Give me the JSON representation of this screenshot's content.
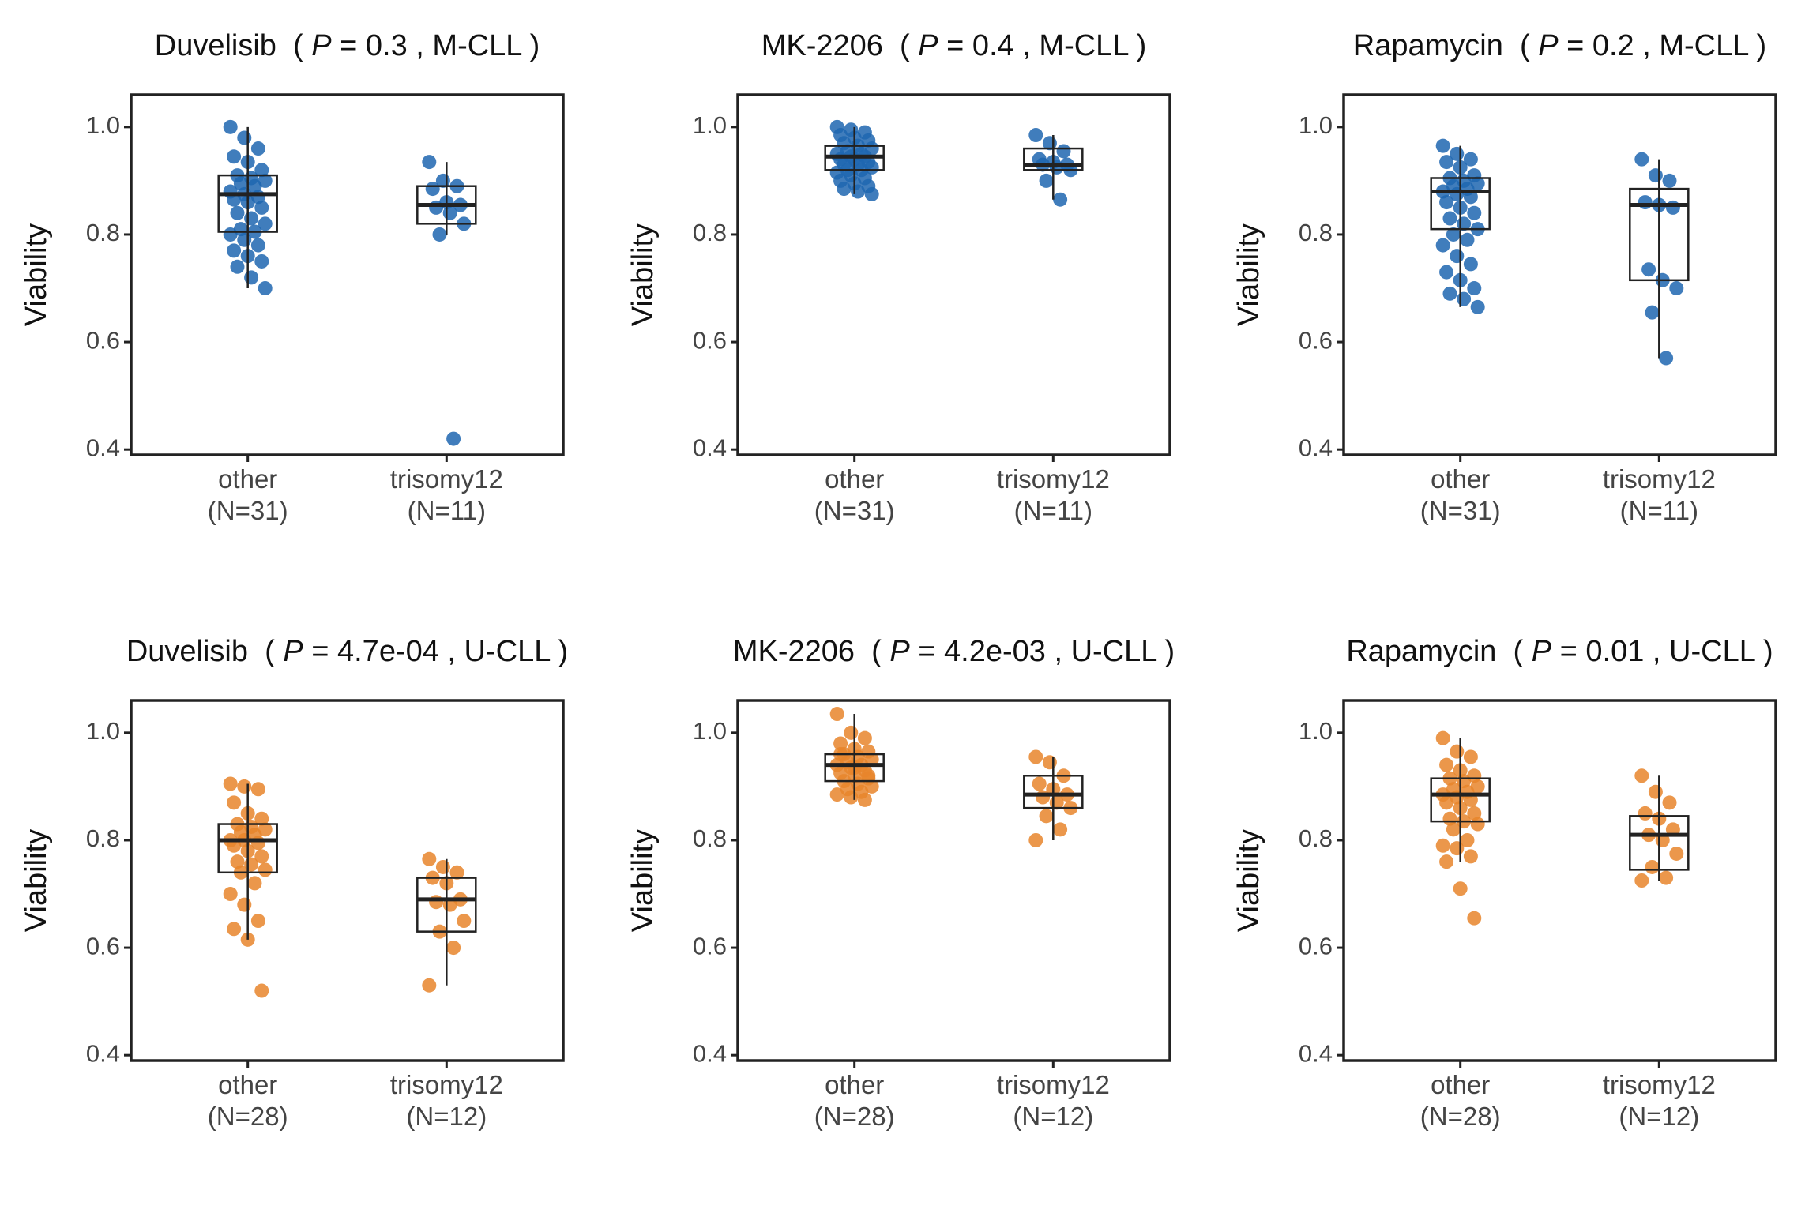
{
  "chart_data": [
    {
      "type": "box",
      "title_parts": [
        "Duvelisib  ( ",
        "P",
        " = 0.3 , M-CLL )"
      ],
      "ylabel": "Viability",
      "categories": [
        "other",
        "trisomy12"
      ],
      "n_labels": [
        "(N=31)",
        "(N=11)"
      ],
      "color": "#1f66b0",
      "ylim": [
        0.39,
        1.06
      ],
      "yticks": [
        0.4,
        0.6,
        0.8,
        {
          "value": 1,
          "label": "1.0"
        }
      ],
      "boxes": [
        {
          "q1": 0.805,
          "median": 0.875,
          "q3": 0.91,
          "whislo": 0.7,
          "whishi": 1.0
        },
        {
          "q1": 0.82,
          "median": 0.855,
          "q3": 0.89,
          "whislo": 0.8,
          "whishi": 0.935
        }
      ],
      "points": [
        [
          1.0,
          0.98,
          0.96,
          0.945,
          0.935,
          0.92,
          0.91,
          0.905,
          0.9,
          0.895,
          0.89,
          0.88,
          0.875,
          0.87,
          0.865,
          0.86,
          0.85,
          0.84,
          0.83,
          0.82,
          0.81,
          0.805,
          0.8,
          0.79,
          0.78,
          0.77,
          0.76,
          0.75,
          0.74,
          0.72,
          0.7
        ],
        [
          0.935,
          0.9,
          0.89,
          0.885,
          0.86,
          0.855,
          0.85,
          0.84,
          0.82,
          0.8,
          0.42
        ]
      ]
    },
    {
      "type": "box",
      "title_parts": [
        "MK-2206  ( ",
        "P",
        " = 0.4 , M-CLL )"
      ],
      "ylabel": "Viability",
      "categories": [
        "other",
        "trisomy12"
      ],
      "n_labels": [
        "(N=31)",
        "(N=11)"
      ],
      "color": "#1f66b0",
      "ylim": [
        0.39,
        1.06
      ],
      "yticks": [
        0.4,
        0.6,
        0.8,
        {
          "value": 1,
          "label": "1.0"
        }
      ],
      "boxes": [
        {
          "q1": 0.92,
          "median": 0.945,
          "q3": 0.965,
          "whislo": 0.875,
          "whishi": 1.0
        },
        {
          "q1": 0.92,
          "median": 0.93,
          "q3": 0.96,
          "whislo": 0.865,
          "whishi": 0.985
        }
      ],
      "points": [
        [
          1.0,
          0.995,
          0.99,
          0.985,
          0.98,
          0.975,
          0.97,
          0.965,
          0.96,
          0.955,
          0.95,
          0.95,
          0.945,
          0.945,
          0.94,
          0.94,
          0.935,
          0.93,
          0.93,
          0.925,
          0.92,
          0.92,
          0.915,
          0.91,
          0.905,
          0.9,
          0.895,
          0.89,
          0.885,
          0.88,
          0.875
        ],
        [
          0.985,
          0.97,
          0.955,
          0.94,
          0.935,
          0.93,
          0.93,
          0.925,
          0.92,
          0.9,
          0.865
        ]
      ]
    },
    {
      "type": "box",
      "title_parts": [
        "Rapamycin  ( ",
        "P",
        " = 0.2 , M-CLL )"
      ],
      "ylabel": "Viability",
      "categories": [
        "other",
        "trisomy12"
      ],
      "n_labels": [
        "(N=31)",
        "(N=11)"
      ],
      "color": "#1f66b0",
      "ylim": [
        0.39,
        1.06
      ],
      "yticks": [
        0.4,
        0.6,
        0.8,
        {
          "value": 1,
          "label": "1.0"
        }
      ],
      "boxes": [
        {
          "q1": 0.81,
          "median": 0.88,
          "q3": 0.905,
          "whislo": 0.665,
          "whishi": 0.965
        },
        {
          "q1": 0.715,
          "median": 0.855,
          "q3": 0.885,
          "whislo": 0.57,
          "whishi": 0.94
        }
      ],
      "points": [
        [
          0.965,
          0.95,
          0.94,
          0.935,
          0.925,
          0.91,
          0.905,
          0.9,
          0.895,
          0.89,
          0.885,
          0.88,
          0.875,
          0.87,
          0.86,
          0.85,
          0.84,
          0.83,
          0.82,
          0.81,
          0.8,
          0.79,
          0.78,
          0.76,
          0.745,
          0.73,
          0.715,
          0.7,
          0.69,
          0.68,
          0.665
        ],
        [
          0.94,
          0.91,
          0.9,
          0.86,
          0.855,
          0.85,
          0.735,
          0.715,
          0.7,
          0.655,
          0.57
        ]
      ]
    },
    {
      "type": "box",
      "title_parts": [
        "Duvelisib  ( ",
        "P",
        " = 4.7e-04 , U-CLL )"
      ],
      "ylabel": "Viability",
      "categories": [
        "other",
        "trisomy12"
      ],
      "n_labels": [
        "(N=28)",
        "(N=12)"
      ],
      "color": "#e8852c",
      "ylim": [
        0.39,
        1.06
      ],
      "yticks": [
        0.4,
        0.6,
        0.8,
        {
          "value": 1,
          "label": "1.0"
        }
      ],
      "boxes": [
        {
          "q1": 0.74,
          "median": 0.8,
          "q3": 0.83,
          "whislo": 0.615,
          "whishi": 0.905
        },
        {
          "q1": 0.63,
          "median": 0.69,
          "q3": 0.73,
          "whislo": 0.53,
          "whishi": 0.765
        }
      ],
      "points": [
        [
          0.905,
          0.9,
          0.895,
          0.87,
          0.85,
          0.84,
          0.83,
          0.825,
          0.82,
          0.815,
          0.81,
          0.8,
          0.8,
          0.795,
          0.79,
          0.78,
          0.77,
          0.76,
          0.755,
          0.745,
          0.74,
          0.72,
          0.7,
          0.68,
          0.65,
          0.635,
          0.615,
          0.52
        ],
        [
          0.765,
          0.75,
          0.74,
          0.73,
          0.72,
          0.69,
          0.685,
          0.68,
          0.65,
          0.63,
          0.6,
          0.53
        ]
      ]
    },
    {
      "type": "box",
      "title_parts": [
        "MK-2206  ( ",
        "P",
        " = 4.2e-03 , U-CLL )"
      ],
      "ylabel": "Viability",
      "categories": [
        "other",
        "trisomy12"
      ],
      "n_labels": [
        "(N=28)",
        "(N=12)"
      ],
      "color": "#e8852c",
      "ylim": [
        0.39,
        1.06
      ],
      "yticks": [
        0.4,
        0.6,
        0.8,
        {
          "value": 1,
          "label": "1.0"
        }
      ],
      "boxes": [
        {
          "q1": 0.91,
          "median": 0.94,
          "q3": 0.96,
          "whislo": 0.875,
          "whishi": 1.035
        },
        {
          "q1": 0.86,
          "median": 0.885,
          "q3": 0.92,
          "whislo": 0.8,
          "whishi": 0.955
        }
      ],
      "points": [
        [
          1.035,
          1.0,
          0.99,
          0.98,
          0.97,
          0.965,
          0.96,
          0.955,
          0.95,
          0.945,
          0.94,
          0.94,
          0.935,
          0.93,
          0.925,
          0.92,
          0.915,
          0.91,
          0.905,
          0.9,
          0.895,
          0.89,
          0.885,
          0.88,
          0.875,
          0.96,
          0.935,
          0.92
        ],
        [
          0.955,
          0.945,
          0.92,
          0.905,
          0.895,
          0.885,
          0.88,
          0.87,
          0.86,
          0.845,
          0.82,
          0.8
        ]
      ]
    },
    {
      "type": "box",
      "title_parts": [
        "Rapamycin  ( ",
        "P",
        " = 0.01 , U-CLL )"
      ],
      "ylabel": "Viability",
      "categories": [
        "other",
        "trisomy12"
      ],
      "n_labels": [
        "(N=28)",
        "(N=12)"
      ],
      "color": "#e8852c",
      "ylim": [
        0.39,
        1.06
      ],
      "yticks": [
        0.4,
        0.6,
        0.8,
        {
          "value": 1,
          "label": "1.0"
        }
      ],
      "boxes": [
        {
          "q1": 0.835,
          "median": 0.885,
          "q3": 0.915,
          "whislo": 0.76,
          "whishi": 0.99
        },
        {
          "q1": 0.745,
          "median": 0.81,
          "q3": 0.845,
          "whislo": 0.725,
          "whishi": 0.92
        }
      ],
      "points": [
        [
          0.99,
          0.965,
          0.955,
          0.94,
          0.93,
          0.92,
          0.915,
          0.91,
          0.9,
          0.895,
          0.89,
          0.885,
          0.88,
          0.875,
          0.87,
          0.86,
          0.85,
          0.84,
          0.835,
          0.83,
          0.82,
          0.8,
          0.79,
          0.785,
          0.77,
          0.76,
          0.71,
          0.655
        ],
        [
          0.92,
          0.89,
          0.87,
          0.85,
          0.84,
          0.82,
          0.81,
          0.8,
          0.775,
          0.75,
          0.73,
          0.725
        ]
      ]
    }
  ]
}
